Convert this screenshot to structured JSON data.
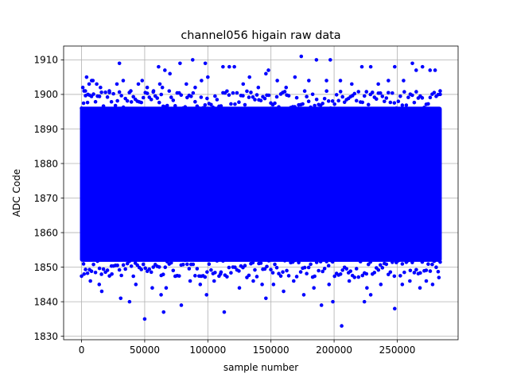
{
  "chart_data": {
    "type": "scatter",
    "title": "channel056 higain raw data",
    "xlabel": "sample number",
    "ylabel": "ADC Code",
    "xlim": [
      -14200,
      298200
    ],
    "ylim": [
      1829,
      1914
    ],
    "xticks": [
      0,
      50000,
      100000,
      150000,
      200000,
      250000
    ],
    "xtick_labels": [
      "0",
      "50000",
      "100000",
      "150000",
      "200000",
      "250000"
    ],
    "yticks": [
      1830,
      1840,
      1850,
      1860,
      1870,
      1880,
      1890,
      1900,
      1910
    ],
    "ytick_labels": [
      "1830",
      "1840",
      "1850",
      "1860",
      "1870",
      "1880",
      "1890",
      "1900",
      "1910"
    ],
    "grid": true,
    "marker_color": "#0000ff",
    "n_samples": 284000,
    "dense_band": {
      "x": [
        0,
        284000
      ],
      "y": [
        1852,
        1896
      ]
    },
    "series": [
      {
        "values_note_free": true,
        "x": [
          1000,
          4000,
          6000,
          2000,
          8000,
          5000,
          12000,
          3000,
          15000,
          9000,
          22000,
          30000,
          28000,
          33000,
          39000,
          45000,
          48000,
          52000,
          57000,
          61000,
          62000,
          64000,
          66000,
          70000,
          78000,
          83000,
          88000,
          90000,
          95000,
          98000,
          100000,
          112000,
          117000,
          121000,
          128000,
          133000,
          140000,
          146000,
          148000,
          155000,
          162000,
          169000,
          174000,
          180000,
          186000,
          194000,
          197000,
          205000,
          214000,
          222000,
          229000,
          235000,
          243000,
          248000,
          255000,
          262000,
          265000,
          270000,
          276000,
          280000,
          284000,
          2000,
          7000,
          14000,
          16000,
          24000,
          31000,
          38000,
          43000,
          50000,
          56000,
          63000,
          65000,
          67000,
          79000,
          86000,
          94000,
          99000,
          105000,
          110000,
          113000,
          125000,
          136000,
          143000,
          146000,
          152000,
          160000,
          168000,
          176000,
          184000,
          190000,
          196000,
          199000,
          206000,
          212000,
          224000,
          226000,
          229000,
          237000,
          248000,
          254000,
          260000,
          268000,
          273000,
          278000,
          283000
        ],
        "y": [
          1902,
          1905,
          1903,
          1901,
          1904,
          1900,
          1903,
          1901,
          1902,
          1904,
          1901,
          1909,
          1903,
          1904,
          1901,
          1903,
          1904,
          1902,
          1901,
          1908,
          1903,
          1902,
          1907,
          1906,
          1909,
          1903,
          1910,
          1902,
          1904,
          1909,
          1905,
          1908,
          1908,
          1908,
          1903,
          1905,
          1902,
          1906,
          1907,
          1904,
          1902,
          1905,
          1911,
          1904,
          1910,
          1904,
          1910,
          1904,
          1903,
          1908,
          1908,
          1903,
          1904,
          1908,
          1904,
          1909,
          1907,
          1908,
          1907,
          1907,
          1901,
          1848,
          1846,
          1845,
          1843,
          1848,
          1841,
          1840,
          1845,
          1835,
          1844,
          1842,
          1837,
          1844,
          1839,
          1846,
          1845,
          1842,
          1846,
          1848,
          1837,
          1844,
          1846,
          1845,
          1841,
          1845,
          1843,
          1846,
          1842,
          1844,
          1839,
          1845,
          1840,
          1833,
          1846,
          1840,
          1844,
          1842,
          1845,
          1838,
          1845,
          1846,
          1844,
          1846,
          1845,
          1847
        ]
      }
    ]
  }
}
